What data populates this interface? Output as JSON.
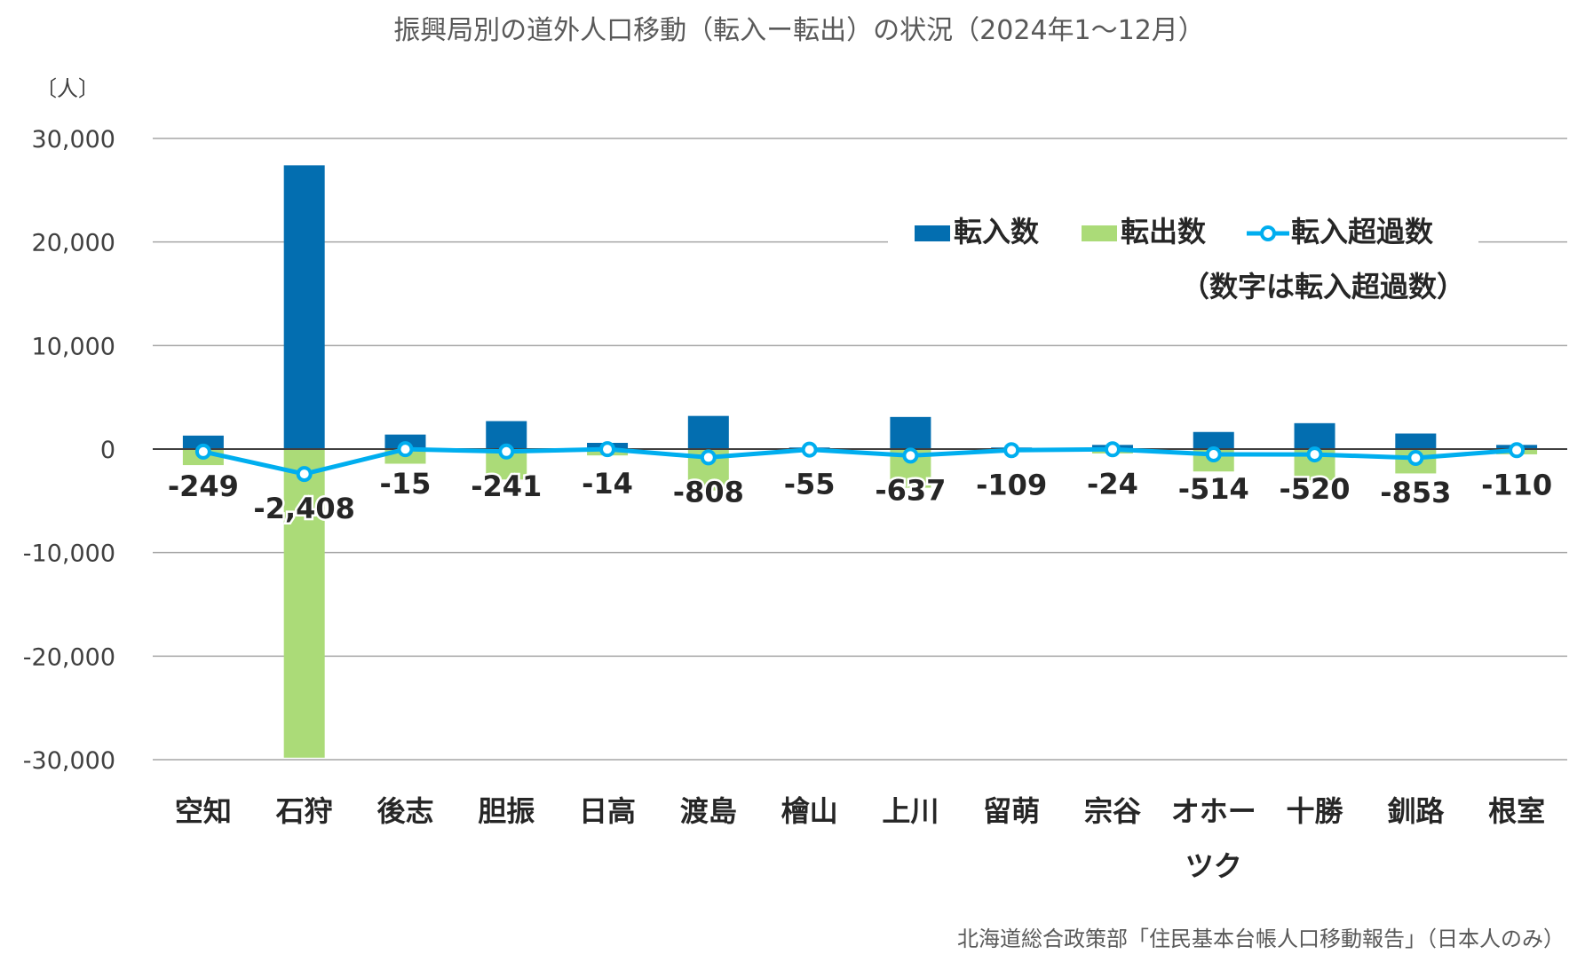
{
  "chart_data": {
    "type": "bar",
    "title": "振興局別の道外人口移動（転入ー転出）の状況（2024年1〜12月）",
    "ylabel": "〔人〕",
    "ylim": [
      -30000,
      30000
    ],
    "yticks": [
      30000,
      20000,
      10000,
      0,
      -10000,
      -20000,
      -30000
    ],
    "ytick_labels": [
      "30,000",
      "20,000",
      "10,000",
      "0",
      "-10,000",
      "-20,000",
      "-30,000"
    ],
    "grid": true,
    "legend_position": "top-right",
    "categories": [
      "空知",
      "石狩",
      "後志",
      "胆振",
      "日高",
      "渡島",
      "檜山",
      "上川",
      "留萌",
      "宗谷",
      "オホーツク",
      "十勝",
      "釧路",
      "根室"
    ],
    "category_labels": [
      [
        "空知"
      ],
      [
        "石狩"
      ],
      [
        "後志"
      ],
      [
        "胆振"
      ],
      [
        "日高"
      ],
      [
        "渡島"
      ],
      [
        "檜山"
      ],
      [
        "上川"
      ],
      [
        "留萌"
      ],
      [
        "宗谷"
      ],
      [
        "オホー",
        "ツク"
      ],
      [
        "十勝"
      ],
      [
        "釧路"
      ],
      [
        "根室"
      ]
    ],
    "series": [
      {
        "name": "転入数",
        "type": "bar",
        "color": "#036EB0",
        "values": [
          1300,
          27400,
          1400,
          2700,
          600,
          3200,
          150,
          3100,
          150,
          400,
          1650,
          2500,
          1500,
          400
        ]
      },
      {
        "name": "転出数",
        "type": "bar",
        "color": "#ABDB78",
        "values": [
          -1549,
          -29808,
          -1415,
          -2941,
          -614,
          -4008,
          -205,
          -3737,
          -259,
          -424,
          -2164,
          -3020,
          -2353,
          -510
        ]
      },
      {
        "name": "転入超過数",
        "type": "line",
        "color": "#00AEEF",
        "values": [
          -249,
          -2408,
          -15,
          -241,
          -14,
          -808,
          -55,
          -637,
          -109,
          -24,
          -514,
          -520,
          -853,
          -110
        ]
      }
    ],
    "data_labels": [
      "-249",
      "-2,408",
      "-15",
      "-241",
      "-14",
      "-808",
      "-55",
      "-637",
      "-109",
      "-24",
      "-514",
      "-520",
      "-853",
      "-110"
    ],
    "legend_note": "（数字は転入超過数）",
    "source": "北海道総合政策部「住民基本台帳人口移動報告」（日本人のみ）"
  }
}
